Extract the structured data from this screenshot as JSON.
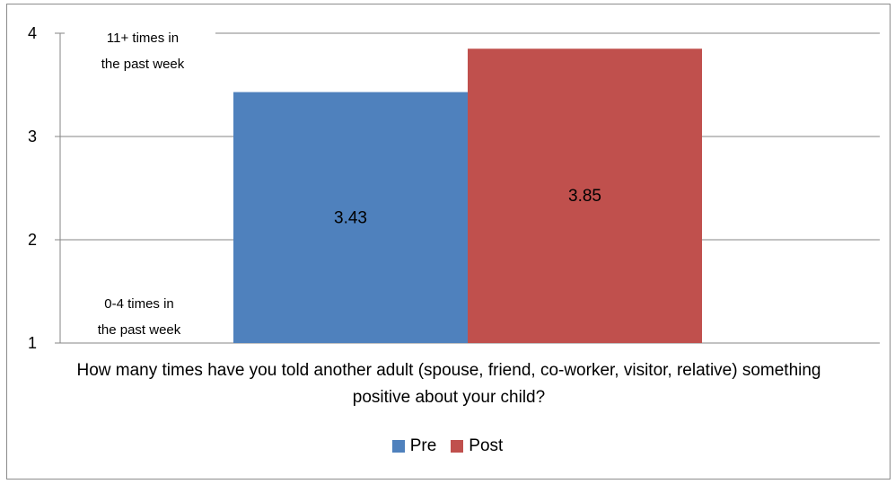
{
  "chart_data": {
    "type": "bar",
    "categories": [
      ""
    ],
    "series": [
      {
        "name": "Pre",
        "values": [
          3.43
        ],
        "color": "#4f81bd"
      },
      {
        "name": "Post",
        "values": [
          3.85
        ],
        "color": "#c0504d"
      }
    ],
    "data_labels": [
      "3.43",
      "3.85"
    ],
    "title": "",
    "xlabel": "How many times have you told another adult (spouse, friend, co-worker, visitor, relative) something positive about your child?",
    "ylabel": "",
    "ylim": [
      1,
      4
    ],
    "yticks": [
      "1",
      "2",
      "3",
      "4"
    ],
    "grid": true,
    "legend_position": "bottom",
    "annotations": {
      "top": [
        "11+ times in",
        "the past week"
      ],
      "bottom": [
        "0-4 times in",
        "the past week"
      ]
    }
  }
}
